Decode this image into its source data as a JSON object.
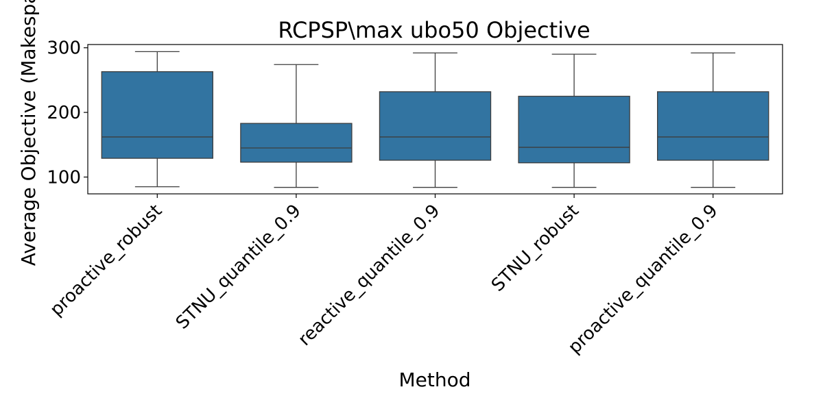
{
  "chart_data": {
    "type": "box",
    "title": "RCPSP\\max ubo50 Objective",
    "xlabel": "Method",
    "ylabel": "Average Objective (Makespan)",
    "ylim": [
      74,
      305
    ],
    "yticks": [
      100,
      200,
      300
    ],
    "grid": false,
    "color": "#3274a1",
    "line_color": "#3d3d3d",
    "categories": [
      "proactive_robust",
      "STNU_quantile_0.9",
      "reactive_quantile_0.9",
      "STNU_robust",
      "proactive_quantile_0.9"
    ],
    "boxes": [
      {
        "whisker_low": 85,
        "q1": 129,
        "median": 162,
        "q3": 263,
        "whisker_high": 294
      },
      {
        "whisker_low": 84,
        "q1": 123,
        "median": 145,
        "q3": 183,
        "whisker_high": 274
      },
      {
        "whisker_low": 84,
        "q1": 126,
        "median": 162,
        "q3": 232,
        "whisker_high": 292
      },
      {
        "whisker_low": 84,
        "q1": 122,
        "median": 146,
        "q3": 225,
        "whisker_high": 290
      },
      {
        "whisker_low": 84,
        "q1": 126,
        "median": 162,
        "q3": 232,
        "whisker_high": 292
      }
    ]
  }
}
